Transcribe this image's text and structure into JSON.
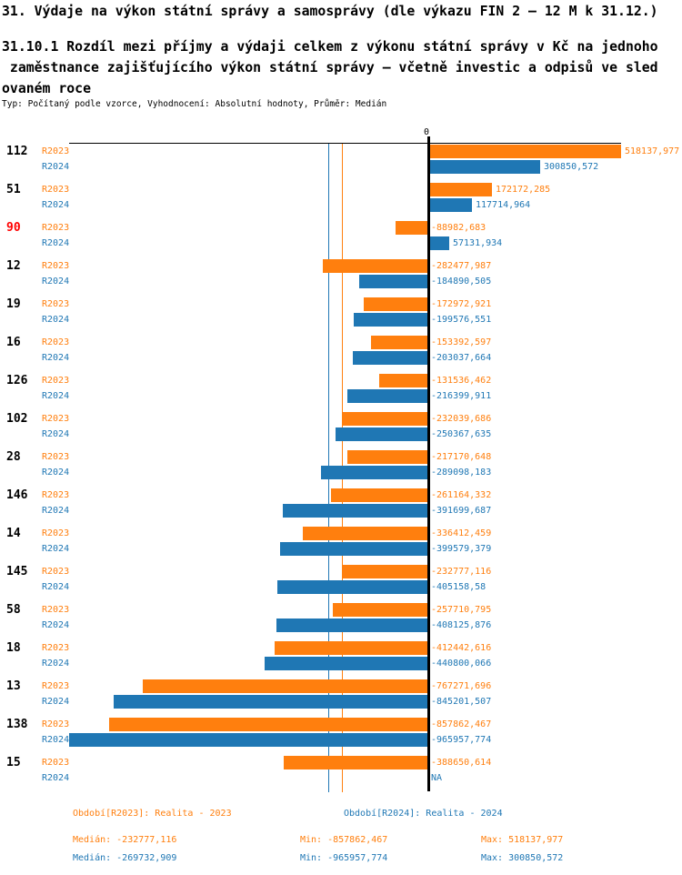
{
  "header": {
    "title": "31. Výdaje na výkon státní správy a samosprávy (dle výkazu FIN 2 – 12 M k 31.12.)",
    "subtitle_lines": [
      "31.10.1 Rozdíl mezi příjmy a výdaji celkem z výkonu státní správy v Kč na jednoho",
      " zaměstnance zajišťujícího výkon státní správy – včetně investic a odpisů ve sled",
      "ovaném roce"
    ],
    "meta": "Typ: Počítaný podle vzorce, Vyhodnocení: Absolutní hodnoty, Průměr: Medián"
  },
  "chart_data": {
    "type": "bar",
    "orientation": "horizontal",
    "zero_tick_label": "0",
    "value_unit": "Kč na zaměstnance",
    "category_default_color": "#000000",
    "category_highlight_color": "#ff0000",
    "series": [
      {
        "id": "R2023",
        "label": "R2023",
        "color": "#ff7f0e",
        "legend_label": "Období[R2023]: Realita - 2023",
        "median": -232777.116,
        "min": -857862.467,
        "max": 518137.977,
        "stats": {
          "median_label": "Medián: -232777,116",
          "min_label": "Min: -857862,467",
          "max_label": "Max: 518137,977"
        }
      },
      {
        "id": "R2024",
        "label": "R2024",
        "color": "#1f77b4",
        "legend_label": "Období[R2024]: Realita - 2024",
        "median": -269732.909,
        "min": -965957.774,
        "max": 300850.572,
        "stats": {
          "median_label": "Medián: -269732,909",
          "min_label": "Min: -965957,774",
          "max_label": "Max: 300850,572"
        }
      }
    ],
    "groups": [
      {
        "category": "112",
        "highlight": false,
        "values": [
          518137.977,
          300850.572
        ],
        "labels": [
          "518137,977",
          "300850,572"
        ]
      },
      {
        "category": "51",
        "highlight": false,
        "values": [
          172172.285,
          117714.964
        ],
        "labels": [
          "172172,285",
          "117714,964"
        ]
      },
      {
        "category": "90",
        "highlight": true,
        "values": [
          -88982.683,
          57131.934
        ],
        "labels": [
          "-88982,683",
          "57131,934"
        ]
      },
      {
        "category": "12",
        "highlight": false,
        "values": [
          -282477.987,
          -184890.505
        ],
        "labels": [
          "-282477,987",
          "-184890,505"
        ]
      },
      {
        "category": "19",
        "highlight": false,
        "values": [
          -172972.921,
          -199576.551
        ],
        "labels": [
          "-172972,921",
          "-199576,551"
        ]
      },
      {
        "category": "16",
        "highlight": false,
        "values": [
          -153392.597,
          -203037.664
        ],
        "labels": [
          "-153392,597",
          "-203037,664"
        ]
      },
      {
        "category": "126",
        "highlight": false,
        "values": [
          -131536.462,
          -216399.911
        ],
        "labels": [
          "-131536,462",
          "-216399,911"
        ]
      },
      {
        "category": "102",
        "highlight": false,
        "values": [
          -232039.686,
          -250367.635
        ],
        "labels": [
          "-232039,686",
          "-250367,635"
        ]
      },
      {
        "category": "28",
        "highlight": false,
        "values": [
          -217170.648,
          -289098.183
        ],
        "labels": [
          "-217170,648",
          "-289098,183"
        ]
      },
      {
        "category": "146",
        "highlight": false,
        "values": [
          -261164.332,
          -391699.687
        ],
        "labels": [
          "-261164,332",
          "-391699,687"
        ]
      },
      {
        "category": "14",
        "highlight": false,
        "values": [
          -336412.459,
          -399579.379
        ],
        "labels": [
          "-336412,459",
          "-399579,379"
        ]
      },
      {
        "category": "145",
        "highlight": false,
        "values": [
          -232777.116,
          -405158.58
        ],
        "labels": [
          "-232777,116",
          "-405158,58"
        ]
      },
      {
        "category": "58",
        "highlight": false,
        "values": [
          -257710.795,
          -408125.876
        ],
        "labels": [
          "-257710,795",
          "-408125,876"
        ]
      },
      {
        "category": "18",
        "highlight": false,
        "values": [
          -412442.616,
          -440800.066
        ],
        "labels": [
          "-412442,616",
          "-440800,066"
        ]
      },
      {
        "category": "13",
        "highlight": false,
        "values": [
          -767271.696,
          -845201.507
        ],
        "labels": [
          "-767271,696",
          "-845201,507"
        ]
      },
      {
        "category": "138",
        "highlight": false,
        "values": [
          -857862.467,
          -965957.774
        ],
        "labels": [
          "-857862,467",
          "-965957,774"
        ]
      },
      {
        "category": "15",
        "highlight": false,
        "values": [
          -388650.614,
          null
        ],
        "labels": [
          "-388650,614",
          "NA"
        ]
      }
    ]
  }
}
